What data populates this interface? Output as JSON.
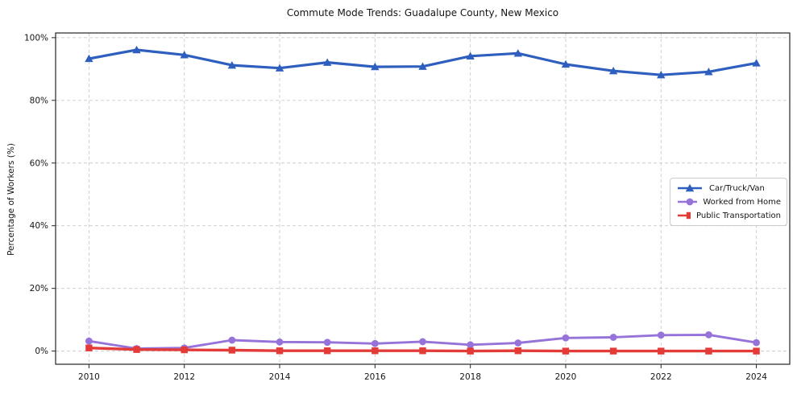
{
  "title": "Commute Mode Trends: Guadalupe County, New Mexico",
  "chart_data": {
    "type": "line",
    "title": "Commute Mode Trends: Guadalupe County, New Mexico",
    "xlabel": "",
    "ylabel": "Percentage of Workers (%)",
    "grid": true,
    "legend_position": "center right",
    "xlim": [
      2009.3,
      2024.7
    ],
    "ylim": [
      -4.2,
      101.5
    ],
    "x": [
      2010,
      2011,
      2012,
      2013,
      2014,
      2015,
      2016,
      2017,
      2018,
      2019,
      2020,
      2021,
      2022,
      2023,
      2024
    ],
    "x_ticks": [
      2010,
      2012,
      2014,
      2016,
      2018,
      2020,
      2022,
      2024
    ],
    "x_tick_labels": [
      "2010",
      "2012",
      "2014",
      "2016",
      "2018",
      "2020",
      "2022",
      "2024"
    ],
    "y_ticks": [
      0,
      20,
      40,
      60,
      80,
      100
    ],
    "y_tick_labels": [
      "0%",
      "20%",
      "40%",
      "60%",
      "80%",
      "100%"
    ],
    "series": [
      {
        "name": "Car/Truck/Van",
        "color": "#2e5fbf",
        "marker": "triangle",
        "line_width": 3.2,
        "values": [
          93.3,
          96.1,
          94.5,
          91.2,
          90.3,
          92.1,
          90.7,
          90.8,
          94.1,
          95.0,
          91.5,
          89.4,
          88.1,
          89.1,
          91.9
        ]
      },
      {
        "name": "Worked from Home",
        "color": "#9673d9",
        "marker": "circle",
        "line_width": 2.9,
        "values": [
          3.2,
          0.8,
          1.0,
          3.5,
          2.9,
          2.8,
          2.4,
          3.0,
          2.0,
          2.6,
          4.2,
          4.4,
          5.1,
          5.2,
          2.7
        ]
      },
      {
        "name": "Public Transportation",
        "color": "#e23b38",
        "marker": "square",
        "line_width": 3.4,
        "values": [
          1.0,
          0.5,
          0.4,
          0.3,
          0.1,
          0.1,
          0.1,
          0.1,
          0.0,
          0.1,
          0.0,
          0.0,
          0.0,
          0.0,
          0.0
        ]
      }
    ]
  }
}
